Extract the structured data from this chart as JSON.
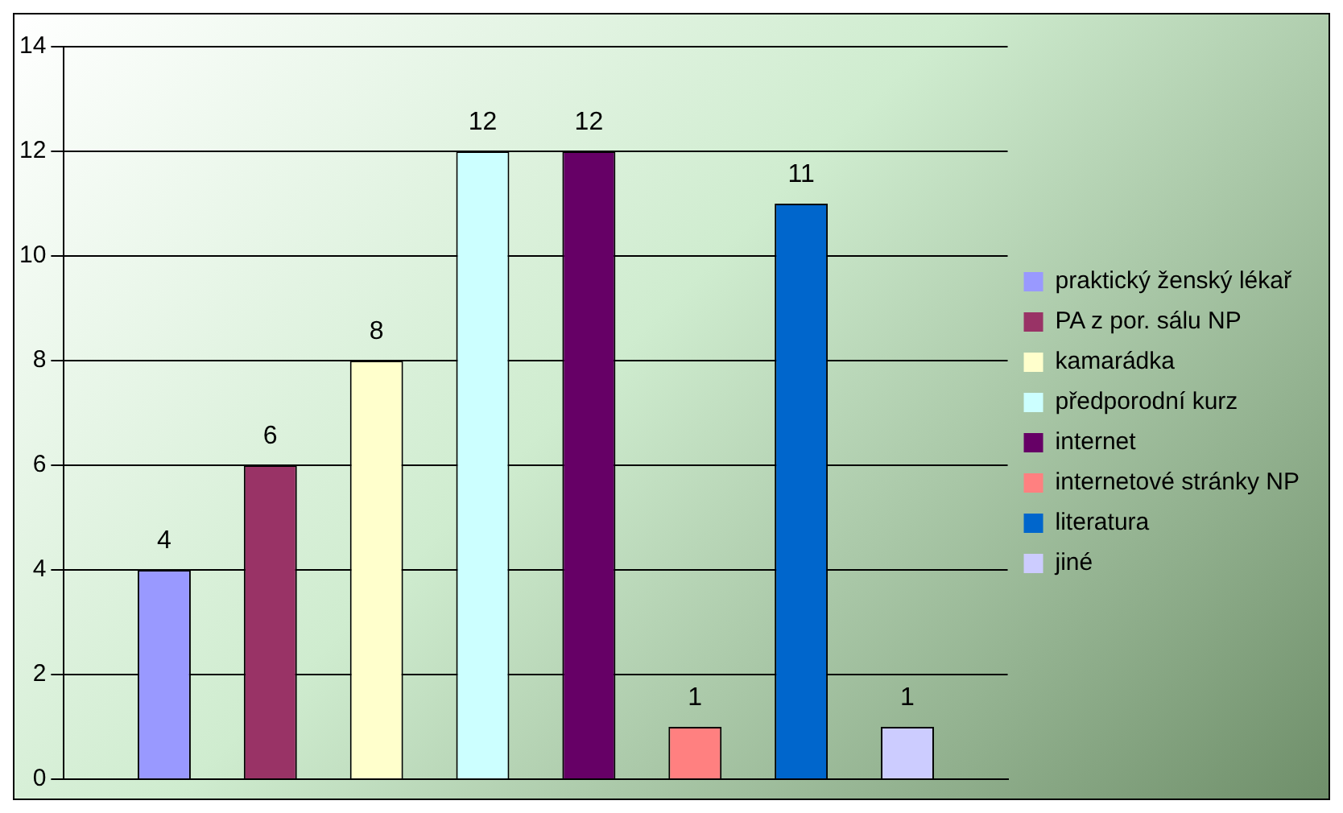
{
  "chart_data": {
    "type": "bar",
    "categories": [
      null
    ],
    "series": [
      {
        "name": "praktický ženský lékař",
        "color": "#9999ff",
        "values": [
          4
        ]
      },
      {
        "name": "PA z por. sálu NP",
        "color": "#993366",
        "values": [
          6
        ]
      },
      {
        "name": "kamarádka",
        "color": "#ffffcc",
        "values": [
          8
        ]
      },
      {
        "name": "předporodní kurz",
        "color": "#ccffff",
        "values": [
          12
        ]
      },
      {
        "name": "internet",
        "color": "#660066",
        "values": [
          12
        ]
      },
      {
        "name": "internetové stránky NP",
        "color": "#ff8080",
        "values": [
          1
        ]
      },
      {
        "name": "literatura",
        "color": "#0066cc",
        "values": [
          11
        ]
      },
      {
        "name": "jiné",
        "color": "#ccccff",
        "values": [
          1
        ]
      }
    ],
    "ylim": [
      0,
      14
    ],
    "yticks": [
      0,
      2,
      4,
      6,
      8,
      10,
      12,
      14
    ],
    "grid": "y",
    "legend": "right",
    "data_labels": true
  }
}
